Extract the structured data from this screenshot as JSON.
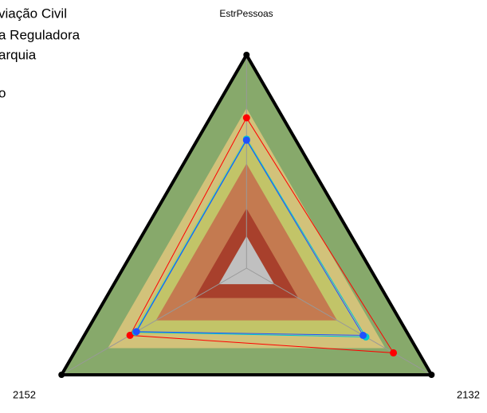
{
  "chart_data": {
    "type": "radar",
    "categories": [
      "EstrPessoas",
      "2132",
      "2152"
    ],
    "ylim": [
      0,
      1
    ],
    "bands": [
      {
        "value": 1,
        "color": "#87a96b"
      },
      {
        "value": 0.75,
        "color": "#d2c27a"
      },
      {
        "value": 0.62,
        "color": "#c2c468"
      },
      {
        "value": 0.49,
        "color": "#c47a50"
      },
      {
        "value": 0.28,
        "color": "#a8402c"
      },
      {
        "value": 0.15,
        "color": "#c0c0c0"
      }
    ],
    "series": [
      {
        "color": "#ff0000",
        "values": [
          0.705,
          0.794,
          0.63
        ]
      },
      {
        "color": "#00c8d0",
        "values": [
          0.605,
          0.645,
          0.6
        ]
      },
      {
        "color": "#2050ff",
        "values": [
          0.6,
          0.63,
          0.595
        ]
      }
    ],
    "annotations": [
      "viação Civil",
      "a Reguladora",
      "arquia",
      "o"
    ]
  }
}
